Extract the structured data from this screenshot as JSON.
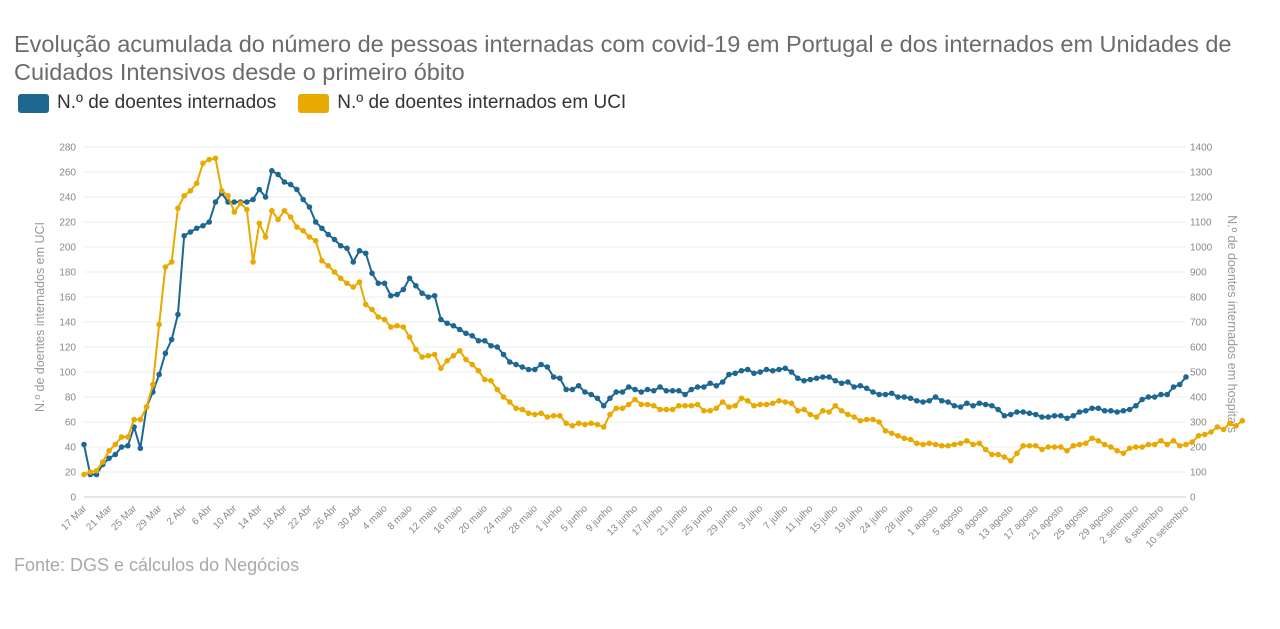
{
  "chart_data": {
    "type": "line",
    "title": "Evolução acumulada do número de pessoas internadas com covid-19 em Portugal e dos internados em Unidades de Cuidados Intensivos desde o primeiro óbito",
    "source": "Fonte: DGS e cálculos do Negócios",
    "legend_position": "top-left",
    "grid": true,
    "y_left": {
      "label": "N.º de doentes internados em UCI",
      "min": 0,
      "max": 280,
      "ticks": [
        0,
        20,
        40,
        60,
        80,
        100,
        120,
        140,
        160,
        180,
        200,
        220,
        240,
        260,
        280
      ]
    },
    "y_right": {
      "label": "N.º de doentes internados em hospitais",
      "min": 0,
      "max": 1400,
      "ticks": [
        0,
        100,
        200,
        300,
        400,
        500,
        600,
        700,
        800,
        900,
        1000,
        1100,
        1200,
        1300,
        1400
      ]
    },
    "x_labels": [
      "17 Mar",
      "21 Mar",
      "25 Mar",
      "29 Mar",
      "2 Abr",
      "6 Abr",
      "10 Abr",
      "14 Abr",
      "18 Abr",
      "22 Abr",
      "26 Abr",
      "30 Abr",
      "4 maio",
      "8 maio",
      "12 maio",
      "16 maio",
      "20 maio",
      "24 maio",
      "28 maio",
      "1 junho",
      "5 junho",
      "9 junho",
      "13 junho",
      "17 junho",
      "21 junho",
      "25 junho",
      "29 junho",
      "3 julho",
      "7 julho",
      "11 julho",
      "15 julho",
      "19 julho",
      "24 julho",
      "28 julho",
      "1 agosto",
      "5 agosto",
      "9 agosto",
      "13 agosto",
      "17 agosto",
      "21 agosto",
      "25 agosto",
      "29 agosto",
      "2 setembro",
      "6 setembro",
      "10 setembro"
    ],
    "series": [
      {
        "name": "N.º de doentes internados",
        "axis": "right",
        "color": "#1d6791",
        "values": [
          210,
          90,
          90,
          130,
          155,
          170,
          200,
          205,
          280,
          195,
          360,
          420,
          490,
          575,
          630,
          730,
          1045,
          1060,
          1075,
          1085,
          1100,
          1180,
          1215,
          1180,
          1180,
          1180,
          1180,
          1190,
          1230,
          1200,
          1305,
          1290,
          1260,
          1250,
          1230,
          1190,
          1160,
          1100,
          1075,
          1050,
          1030,
          1005,
          995,
          940,
          985,
          975,
          895,
          855,
          855,
          805,
          810,
          830,
          875,
          845,
          815,
          800,
          805,
          710,
          695,
          685,
          670,
          655,
          645,
          625,
          625,
          605,
          600,
          570,
          540,
          530,
          520,
          510,
          510,
          530,
          520,
          480,
          475,
          430,
          430,
          445,
          420,
          410,
          395,
          365,
          395,
          420,
          420,
          440,
          430,
          420,
          430,
          425,
          440,
          425,
          425,
          425,
          410,
          430,
          440,
          440,
          455,
          445,
          460,
          490,
          495,
          505,
          510,
          495,
          500,
          510,
          505,
          510,
          515,
          500,
          475,
          465,
          470,
          475,
          480,
          480,
          465,
          455,
          460,
          440,
          445,
          435,
          420,
          410,
          410,
          415,
          400,
          400,
          395,
          385,
          380,
          385,
          400,
          385,
          380,
          365,
          360,
          375,
          365,
          375,
          370,
          365,
          350,
          325,
          330,
          340,
          340,
          335,
          330,
          320,
          320,
          325,
          325,
          315,
          325,
          340,
          345,
          355,
          355,
          345,
          345,
          340,
          345,
          350,
          365,
          390,
          400,
          400,
          410,
          410,
          440,
          450,
          480
        ]
      },
      {
        "name": "N.º de doentes internados em UCI",
        "axis": "left",
        "color": "#e8a900",
        "values": [
          18,
          20,
          21,
          28,
          37,
          42,
          48,
          48,
          62,
          62,
          72,
          90,
          138,
          184,
          188,
          231,
          241,
          245,
          251,
          267,
          270,
          271,
          245,
          241,
          228,
          235,
          230,
          188,
          219,
          208,
          229,
          222,
          229,
          224,
          216,
          213,
          208,
          205,
          189,
          185,
          180,
          175,
          171,
          168,
          172,
          154,
          150,
          144,
          142,
          136,
          137,
          136,
          128,
          118,
          112,
          113,
          114,
          103,
          109,
          113,
          117,
          110,
          106,
          101,
          94,
          93,
          86,
          80,
          76,
          71,
          70,
          67,
          66,
          67,
          64,
          65,
          65,
          59,
          57,
          59,
          58,
          59,
          58,
          56,
          66,
          71,
          71,
          74,
          78,
          74,
          74,
          73,
          70,
          70,
          70,
          73,
          73,
          73,
          74,
          69,
          69,
          71,
          76,
          72,
          73,
          79,
          77,
          73,
          74,
          74,
          75,
          77,
          76,
          75,
          69,
          70,
          66,
          64,
          69,
          68,
          73,
          69,
          66,
          64,
          61,
          62,
          62,
          60,
          53,
          51,
          49,
          47,
          46,
          43,
          42,
          43,
          42,
          41,
          41,
          42,
          43,
          45,
          42,
          43,
          38,
          34,
          34,
          32,
          29,
          35,
          41,
          41,
          41,
          38,
          40,
          40,
          40,
          37,
          41,
          42,
          43,
          47,
          45,
          42,
          40,
          37,
          35,
          39,
          40,
          40,
          42,
          42,
          45,
          42,
          45,
          41,
          42,
          44,
          49,
          50,
          52,
          56,
          54,
          59,
          57,
          61
        ]
      }
    ]
  }
}
